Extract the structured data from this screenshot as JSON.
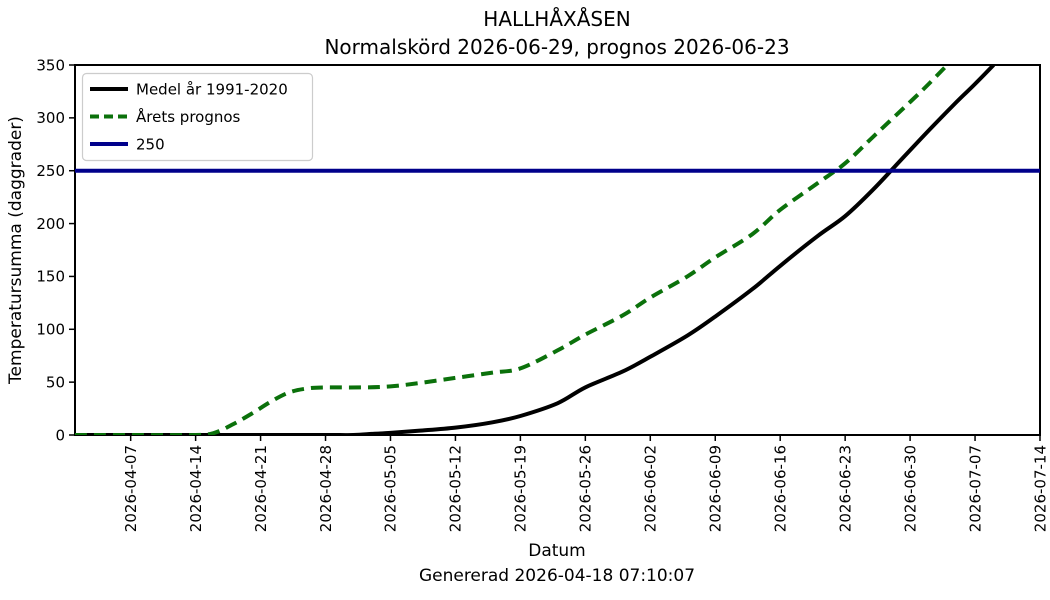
{
  "chart_data": {
    "type": "line",
    "title_line1": "HALLHÅXÅSEN",
    "title_line2": "Normalskörd 2026-06-29, prognos 2026-06-23",
    "xlabel": "Datum",
    "ylabel": "Temperatursumma (daggrader)",
    "footer": "Genererad 2026-04-18 07:10:07",
    "x_range": [
      "2026-04-01",
      "2026-07-14"
    ],
    "ylim": [
      0,
      350
    ],
    "grid": false,
    "legend_position": "upper left",
    "y_ticks": [
      0,
      50,
      100,
      150,
      200,
      250,
      300,
      350
    ],
    "x_ticks": [
      "2026-04-07",
      "2026-04-14",
      "2026-04-21",
      "2026-04-28",
      "2026-05-05",
      "2026-05-12",
      "2026-05-19",
      "2026-05-26",
      "2026-06-02",
      "2026-06-09",
      "2026-06-16",
      "2026-06-23",
      "2026-06-30",
      "2026-07-07",
      "2026-07-14"
    ],
    "series": [
      {
        "name": "Medel år 1991-2020",
        "type": "line",
        "style": "solid",
        "color": "#000000",
        "points": [
          [
            "2026-04-01",
            0
          ],
          [
            "2026-04-14",
            0
          ],
          [
            "2026-04-21",
            0
          ],
          [
            "2026-04-28",
            0
          ],
          [
            "2026-05-01",
            0
          ],
          [
            "2026-05-03",
            1
          ],
          [
            "2026-05-05",
            2
          ],
          [
            "2026-05-08",
            4
          ],
          [
            "2026-05-12",
            7
          ],
          [
            "2026-05-16",
            12
          ],
          [
            "2026-05-19",
            18
          ],
          [
            "2026-05-23",
            30
          ],
          [
            "2026-05-26",
            45
          ],
          [
            "2026-05-30",
            60
          ],
          [
            "2026-06-02",
            74
          ],
          [
            "2026-06-06",
            94
          ],
          [
            "2026-06-09",
            112
          ],
          [
            "2026-06-13",
            138
          ],
          [
            "2026-06-16",
            160
          ],
          [
            "2026-06-20",
            188
          ],
          [
            "2026-06-23",
            207
          ],
          [
            "2026-06-26",
            232
          ],
          [
            "2026-06-29",
            260
          ],
          [
            "2026-07-02",
            288
          ],
          [
            "2026-07-05",
            315
          ],
          [
            "2026-07-07",
            332
          ],
          [
            "2026-07-09",
            350
          ]
        ]
      },
      {
        "name": "Årets prognos",
        "type": "line",
        "style": "dashed",
        "color": "#0b710b",
        "points": [
          [
            "2026-04-01",
            0
          ],
          [
            "2026-04-07",
            0
          ],
          [
            "2026-04-14",
            0
          ],
          [
            "2026-04-16",
            2
          ],
          [
            "2026-04-18",
            10
          ],
          [
            "2026-04-20",
            20
          ],
          [
            "2026-04-22",
            31
          ],
          [
            "2026-04-24",
            40
          ],
          [
            "2026-04-26",
            44
          ],
          [
            "2026-04-28",
            45
          ],
          [
            "2026-05-02",
            45
          ],
          [
            "2026-05-05",
            46
          ],
          [
            "2026-05-08",
            49
          ],
          [
            "2026-05-12",
            54
          ],
          [
            "2026-05-16",
            59
          ],
          [
            "2026-05-19",
            63
          ],
          [
            "2026-05-23",
            80
          ],
          [
            "2026-05-26",
            95
          ],
          [
            "2026-05-30",
            113
          ],
          [
            "2026-06-02",
            130
          ],
          [
            "2026-06-06",
            150
          ],
          [
            "2026-06-09",
            168
          ],
          [
            "2026-06-13",
            190
          ],
          [
            "2026-06-16",
            213
          ],
          [
            "2026-06-20",
            238
          ],
          [
            "2026-06-23",
            257
          ],
          [
            "2026-06-26",
            282
          ],
          [
            "2026-06-30",
            315
          ],
          [
            "2026-07-02",
            332
          ],
          [
            "2026-07-04",
            350
          ]
        ]
      },
      {
        "name": "250",
        "type": "hline",
        "style": "solid",
        "color": "#00008b",
        "value": 250
      }
    ]
  }
}
